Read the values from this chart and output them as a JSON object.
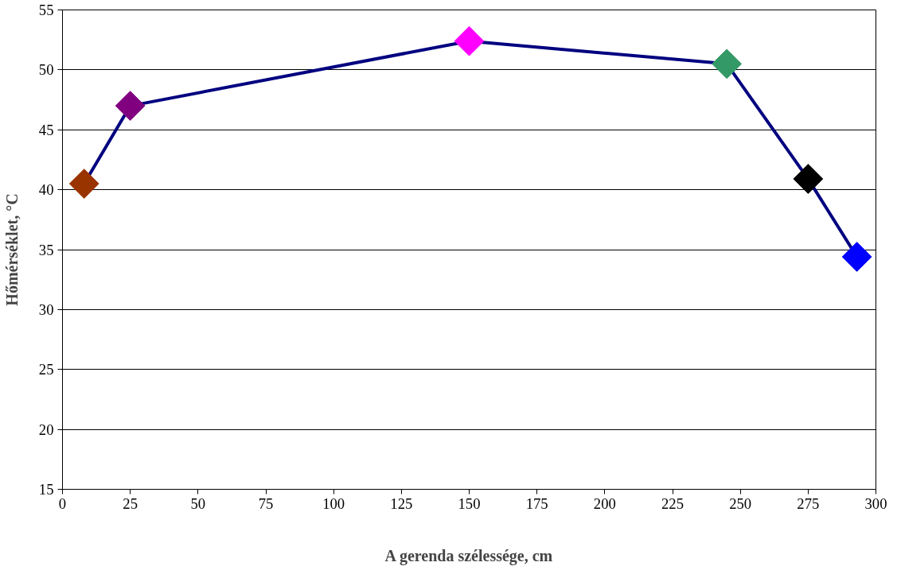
{
  "chart_data": {
    "type": "line",
    "xlabel": "A gerenda szélessége, cm",
    "ylabel": "Hőmérséklet, °C",
    "x": [
      8,
      25,
      150,
      245,
      275,
      293
    ],
    "series": [
      {
        "color": "#000080",
        "values": [
          40.5,
          47.0,
          52.4,
          50.5,
          40.9,
          34.4
        ],
        "colors": [
          "#993300",
          "#800080",
          "#ff00ff",
          "#339966",
          "#000000",
          "#0000ff"
        ]
      }
    ],
    "xlim": [
      0,
      300
    ],
    "xticks": [
      0,
      25,
      50,
      75,
      100,
      125,
      150,
      175,
      200,
      225,
      250,
      275,
      300
    ],
    "ylim": [
      15,
      55
    ],
    "yticks": [
      15,
      20,
      25,
      30,
      35,
      40,
      45,
      50,
      55
    ],
    "grid": "y",
    "marker": "diamond",
    "line_style": "solid"
  }
}
